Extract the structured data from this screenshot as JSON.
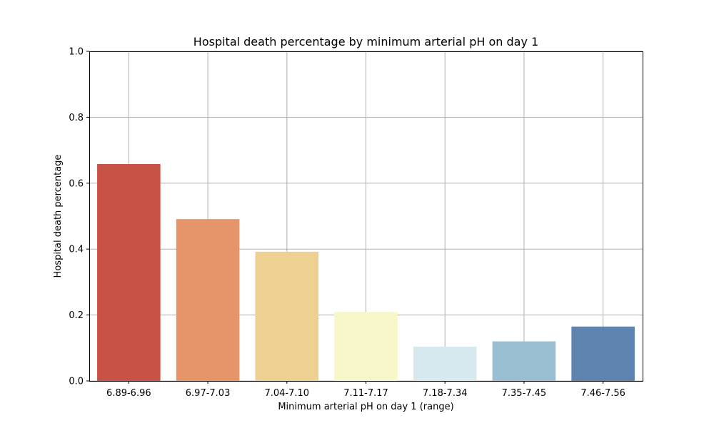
{
  "chart_data": {
    "type": "bar",
    "title": "Hospital death percentage by minimum arterial pH on day 1",
    "xlabel": "Minimum arterial pH on day 1 (range)",
    "ylabel": "Hospital death percentage",
    "ylim": [
      0,
      1.0
    ],
    "yticks": [
      0.0,
      0.2,
      0.4,
      0.6,
      0.8,
      1.0
    ],
    "ytick_labels": [
      "0.0",
      "0.2",
      "0.4",
      "0.6",
      "0.8",
      "1.0"
    ],
    "grid": true,
    "categories": [
      "6.89-6.96",
      "6.97-7.03",
      "7.04-7.10",
      "7.11-7.17",
      "7.18-7.34",
      "7.35-7.45",
      "7.46-7.56"
    ],
    "values": [
      0.658,
      0.491,
      0.392,
      0.209,
      0.104,
      0.12,
      0.165
    ],
    "colors": [
      "#c85245",
      "#e6956a",
      "#eed192",
      "#f8f7c9",
      "#d6e9ef",
      "#9abfd3",
      "#5e83ae"
    ]
  }
}
